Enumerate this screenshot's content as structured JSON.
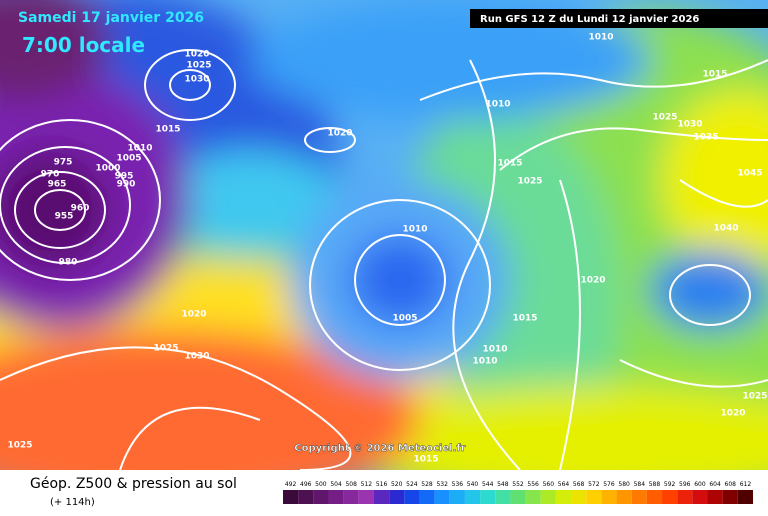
{
  "header": {
    "date": "Samedi 17 janvier 2026",
    "time": "7:00 locale",
    "run": "Run GFS 12 Z du Lundi 12 janvier 2026"
  },
  "map": {
    "copyright": "Copyright © 2026 Meteociel.fr",
    "isobar_labels": [
      "1020",
      "1025",
      "1030",
      "1015",
      "1010",
      "1005",
      "1000",
      "995",
      "990",
      "975",
      "970",
      "965",
      "960",
      "955",
      "980",
      "1020",
      "1010",
      "1015",
      "1010",
      "1025",
      "1030",
      "1035",
      "1015",
      "1025",
      "1045",
      "1040",
      "1010",
      "1020",
      "1005",
      "1015",
      "1020",
      "1025",
      "1030",
      "1010",
      "1010",
      "1025",
      "1025",
      "1020",
      "1015"
    ]
  },
  "legend": {
    "title": "Géop. Z500 & pression au sol",
    "lead": "(+ 114h)",
    "scale": [
      "492",
      "496",
      "500",
      "504",
      "508",
      "512",
      "516",
      "520",
      "524",
      "528",
      "532",
      "536",
      "540",
      "544",
      "548",
      "552",
      "556",
      "560",
      "564",
      "568",
      "572",
      "576",
      "580",
      "584",
      "588",
      "592",
      "596",
      "600",
      "604",
      "608",
      "612"
    ]
  }
}
